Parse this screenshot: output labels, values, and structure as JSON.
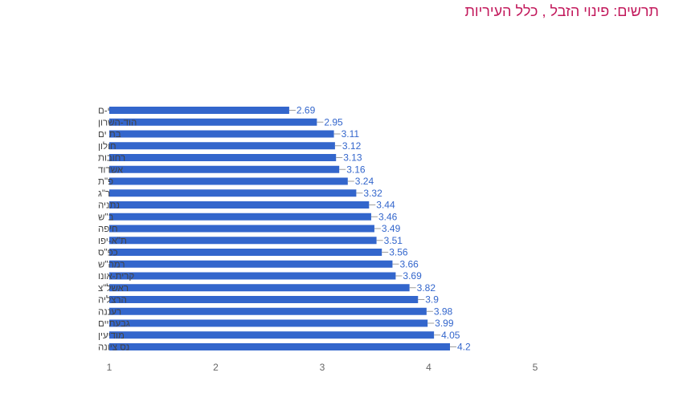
{
  "title": "תרשים: פינוי הזבל , כלל העיריות",
  "colors": {
    "bar": "#3366cc",
    "label": "#3366cc",
    "category": "#444444",
    "tick": "#666666",
    "title": "#c2185b"
  },
  "chart_data": {
    "type": "bar",
    "orientation": "horizontal",
    "title": "תרשים: פינוי הזבל , כלל העיריות",
    "xlim": [
      1,
      5
    ],
    "xticks": [
      "1",
      "2",
      "3",
      "4",
      "5"
    ],
    "grid": false,
    "legend": "none",
    "categories": [
      "י-ם",
      "הוד-השרון",
      "בת ים",
      "חולון",
      "רחובות",
      "אשדוד",
      "פ\"ת",
      "ר\"ג",
      "נתניה",
      "ב\"ש",
      "חיפה",
      "ת\"א-יפו",
      "כפ\"ס",
      "רמה\"ש",
      "קרית-אונו",
      "ראשל\"צ",
      "הרצליה",
      "רעננה",
      "גבעתיים",
      "מודיעין",
      "נס ציונה"
    ],
    "values": [
      2.69,
      2.95,
      3.11,
      3.12,
      3.13,
      3.16,
      3.24,
      3.32,
      3.44,
      3.46,
      3.49,
      3.51,
      3.56,
      3.66,
      3.69,
      3.82,
      3.9,
      3.98,
      3.99,
      4.05,
      4.2
    ],
    "value_labels": [
      "2.69",
      "2.95",
      "3.11",
      "3.12",
      "3.13",
      "3.16",
      "3.24",
      "3.32",
      "3.44",
      "3.46",
      "3.49",
      "3.51",
      "3.56",
      "3.66",
      "3.69",
      "3.82",
      "3.9",
      "3.98",
      "3.99",
      "4.05",
      "4.2"
    ]
  }
}
